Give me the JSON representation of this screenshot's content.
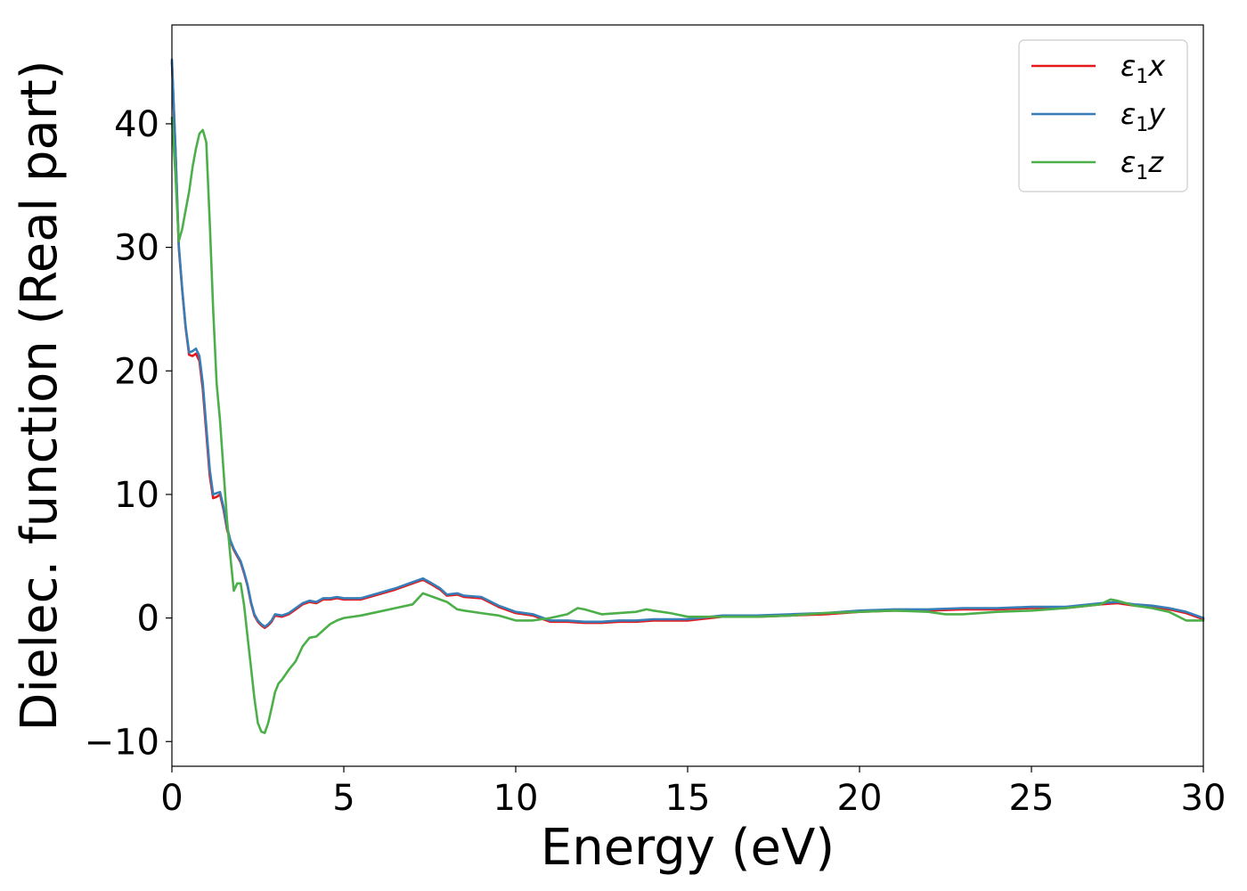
{
  "chart_data": {
    "type": "line",
    "xlabel": "Energy (eV)",
    "ylabel": "Dielec. function (Real part)",
    "xlim": [
      0,
      30
    ],
    "ylim": [
      -12,
      48
    ],
    "xticks": [
      0,
      5,
      10,
      15,
      20,
      25,
      30
    ],
    "yticks": [
      -10,
      0,
      10,
      20,
      30,
      40
    ],
    "xtick_labels": [
      "0",
      "5",
      "10",
      "15",
      "20",
      "25",
      "30"
    ],
    "ytick_labels": [
      "−10",
      "0",
      "10",
      "20",
      "30",
      "40"
    ],
    "grid": false,
    "legend_position": "top-right",
    "series": [
      {
        "name": "ε1x",
        "legend_base": "ε",
        "legend_sub": "1",
        "legend_var": "x",
        "color": "#e41a1c",
        "x": [
          0,
          0.1,
          0.2,
          0.3,
          0.4,
          0.5,
          0.6,
          0.7,
          0.8,
          0.9,
          1.0,
          1.1,
          1.2,
          1.3,
          1.4,
          1.5,
          1.6,
          1.7,
          1.8,
          1.9,
          2.0,
          2.1,
          2.2,
          2.3,
          2.4,
          2.5,
          2.6,
          2.7,
          2.8,
          2.9,
          3.0,
          3.2,
          3.4,
          3.6,
          3.8,
          4.0,
          4.2,
          4.4,
          4.6,
          4.8,
          5.0,
          5.5,
          6.0,
          6.5,
          7.0,
          7.3,
          7.5,
          7.8,
          8.0,
          8.3,
          8.5,
          9.0,
          9.5,
          10.0,
          10.5,
          11.0,
          11.5,
          12.0,
          12.5,
          13.0,
          13.5,
          14.0,
          15.0,
          16.0,
          17.0,
          18.0,
          19.0,
          20.0,
          21.0,
          22.0,
          23.0,
          24.0,
          25.0,
          26.0,
          27.0,
          27.5,
          28.0,
          28.5,
          29.0,
          29.5,
          30.0
        ],
        "y": [
          45,
          38,
          30,
          26.5,
          23.5,
          21.3,
          21.2,
          21.4,
          20.8,
          18.5,
          15,
          11.5,
          9.7,
          9.8,
          10,
          8.8,
          7.2,
          6.2,
          5.5,
          5,
          4.5,
          3.6,
          2.6,
          1.2,
          0.2,
          -0.3,
          -0.6,
          -0.8,
          -0.6,
          -0.3,
          0.2,
          0.1,
          0.3,
          0.7,
          1.1,
          1.3,
          1.2,
          1.5,
          1.5,
          1.6,
          1.5,
          1.5,
          1.9,
          2.3,
          2.8,
          3.1,
          2.8,
          2.3,
          1.8,
          1.9,
          1.7,
          1.6,
          0.9,
          0.4,
          0.2,
          -0.3,
          -0.3,
          -0.4,
          -0.4,
          -0.3,
          -0.3,
          -0.2,
          -0.2,
          0.1,
          0.1,
          0.2,
          0.3,
          0.5,
          0.6,
          0.6,
          0.7,
          0.7,
          0.8,
          0.8,
          1.1,
          1.2,
          1.0,
          0.9,
          0.7,
          0.4,
          -0.1
        ]
      },
      {
        "name": "ε1y",
        "legend_base": "ε",
        "legend_sub": "1",
        "legend_var": "y",
        "color": "#377eb8",
        "x": [
          0,
          0.1,
          0.2,
          0.3,
          0.4,
          0.5,
          0.6,
          0.7,
          0.8,
          0.9,
          1.0,
          1.1,
          1.2,
          1.3,
          1.4,
          1.5,
          1.6,
          1.7,
          1.8,
          1.9,
          2.0,
          2.1,
          2.2,
          2.3,
          2.4,
          2.5,
          2.6,
          2.7,
          2.8,
          2.9,
          3.0,
          3.2,
          3.4,
          3.6,
          3.8,
          4.0,
          4.2,
          4.4,
          4.6,
          4.8,
          5.0,
          5.5,
          6.0,
          6.5,
          7.0,
          7.3,
          7.5,
          7.8,
          8.0,
          8.3,
          8.5,
          9.0,
          9.5,
          10.0,
          10.5,
          11.0,
          11.5,
          12.0,
          12.5,
          13.0,
          13.5,
          14.0,
          15.0,
          16.0,
          17.0,
          18.0,
          19.0,
          20.0,
          21.0,
          22.0,
          23.0,
          24.0,
          25.0,
          26.0,
          27.0,
          27.5,
          28.0,
          28.5,
          29.0,
          29.5,
          30.0
        ],
        "y": [
          45.2,
          38.2,
          30.2,
          26.6,
          23.6,
          21.5,
          21.6,
          21.8,
          21.2,
          19,
          15.5,
          12,
          10,
          10.1,
          10.2,
          9,
          7.4,
          6.3,
          5.6,
          5.1,
          4.6,
          3.7,
          2.7,
          1.3,
          0.3,
          -0.2,
          -0.5,
          -0.7,
          -0.5,
          -0.2,
          0.3,
          0.2,
          0.4,
          0.8,
          1.2,
          1.4,
          1.3,
          1.6,
          1.6,
          1.7,
          1.6,
          1.6,
          2.0,
          2.4,
          2.9,
          3.2,
          2.9,
          2.4,
          1.9,
          2.0,
          1.8,
          1.7,
          1.0,
          0.5,
          0.3,
          -0.2,
          -0.2,
          -0.3,
          -0.3,
          -0.2,
          -0.2,
          -0.1,
          -0.1,
          0.2,
          0.2,
          0.3,
          0.4,
          0.6,
          0.7,
          0.7,
          0.8,
          0.8,
          0.9,
          0.9,
          1.2,
          1.3,
          1.1,
          1.0,
          0.8,
          0.5,
          0.0
        ]
      },
      {
        "name": "ε1z",
        "legend_base": "ε",
        "legend_sub": "1",
        "legend_var": "z",
        "color": "#4daf4a",
        "x": [
          0,
          0.1,
          0.2,
          0.3,
          0.4,
          0.5,
          0.6,
          0.7,
          0.8,
          0.9,
          1.0,
          1.1,
          1.2,
          1.3,
          1.4,
          1.5,
          1.6,
          1.7,
          1.8,
          1.9,
          2.0,
          2.1,
          2.2,
          2.3,
          2.4,
          2.5,
          2.6,
          2.7,
          2.8,
          2.9,
          3.0,
          3.1,
          3.2,
          3.4,
          3.6,
          3.8,
          4.0,
          4.2,
          4.4,
          4.6,
          4.8,
          5.0,
          5.5,
          6.0,
          6.5,
          7.0,
          7.3,
          7.5,
          8.0,
          8.3,
          8.5,
          9.0,
          9.5,
          10.0,
          10.5,
          11.0,
          11.5,
          11.8,
          12.0,
          12.5,
          13.0,
          13.5,
          13.8,
          14.0,
          14.5,
          15.0,
          16.0,
          17.0,
          18.0,
          19.0,
          20.0,
          21.0,
          22.0,
          22.5,
          23.0,
          24.0,
          25.0,
          26.0,
          27.0,
          27.3,
          27.5,
          28.0,
          28.5,
          29.0,
          29.5,
          30.0
        ],
        "y": [
          40.5,
          36,
          30.5,
          31.5,
          33,
          34.5,
          36.5,
          38,
          39.2,
          39.5,
          38.5,
          32,
          25,
          19,
          16,
          12,
          8,
          5,
          2.2,
          2.8,
          2.8,
          1.0,
          -1.5,
          -4,
          -6.5,
          -8.5,
          -9.2,
          -9.3,
          -8.5,
          -7.3,
          -6.0,
          -5.3,
          -5.0,
          -4.2,
          -3.5,
          -2.3,
          -1.6,
          -1.5,
          -1.0,
          -0.5,
          -0.2,
          0.0,
          0.2,
          0.5,
          0.8,
          1.1,
          2.0,
          1.8,
          1.3,
          0.7,
          0.6,
          0.4,
          0.2,
          -0.2,
          -0.2,
          0.0,
          0.3,
          0.8,
          0.7,
          0.3,
          0.4,
          0.5,
          0.7,
          0.6,
          0.4,
          0.1,
          0.1,
          0.1,
          0.2,
          0.4,
          0.5,
          0.6,
          0.5,
          0.3,
          0.3,
          0.5,
          0.6,
          0.8,
          1.1,
          1.5,
          1.4,
          1.0,
          0.8,
          0.5,
          -0.2,
          -0.2
        ]
      }
    ]
  }
}
